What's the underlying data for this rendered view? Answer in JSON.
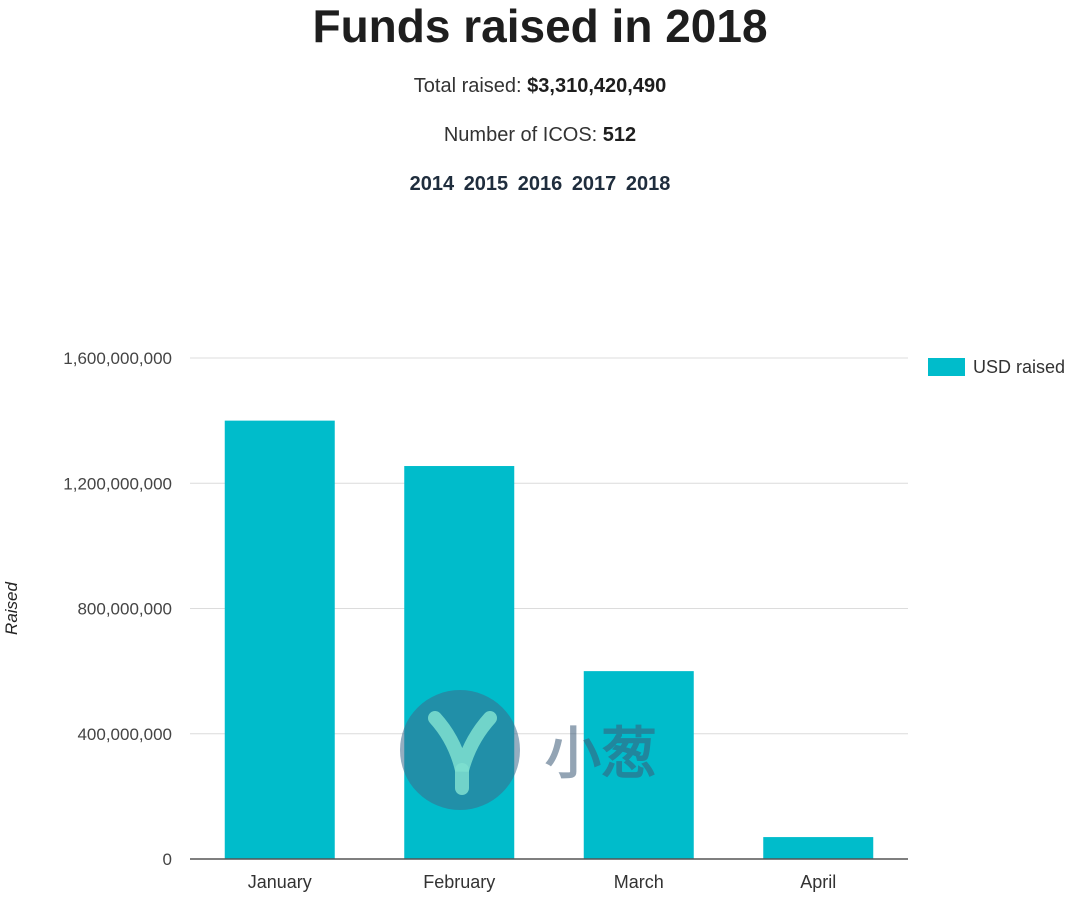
{
  "header": {
    "title": "Funds raised in 2018",
    "total_label": "Total raised: ",
    "total_value": "$3,310,420,490",
    "icos_label": "Number of ICOS: ",
    "icos_value": "512",
    "years": [
      "2014",
      "2015",
      "2016",
      "2017",
      "2018"
    ]
  },
  "watermark": {
    "text": "小葱"
  },
  "colors": {
    "bar": "#00bccb",
    "grid": "#dcdcdc",
    "axis": "#555555"
  },
  "chart_data": {
    "type": "bar",
    "categories": [
      "January",
      "February",
      "March",
      "April"
    ],
    "series": [
      {
        "name": "USD raised",
        "values": [
          1400000000,
          1255000000,
          600000000,
          70000000
        ]
      }
    ],
    "ylabel": "Raised",
    "ylim": [
      0,
      1600000000
    ],
    "yticks": [
      0,
      400000000,
      800000000,
      1200000000,
      1600000000
    ],
    "ytick_labels": [
      "0",
      "400,000,000",
      "800,000,000",
      "1,200,000,000",
      "1,600,000,000"
    ],
    "grid": true,
    "legend": "top-right"
  }
}
